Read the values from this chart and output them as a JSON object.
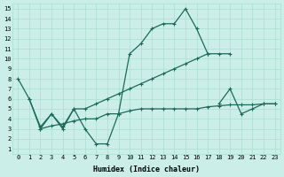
{
  "background_color": "#cceee8",
  "grid_color": "#aaddcc",
  "line_color": "#1a6b5a",
  "xlabel": "Humidex (Indice chaleur)",
  "xlim": [
    -0.5,
    23.5
  ],
  "ylim": [
    0.5,
    15.5
  ],
  "xticks": [
    0,
    1,
    2,
    3,
    4,
    5,
    6,
    7,
    8,
    9,
    10,
    11,
    12,
    13,
    14,
    15,
    16,
    17,
    18,
    19,
    20,
    21,
    22,
    23
  ],
  "yticks": [
    1,
    2,
    3,
    4,
    5,
    6,
    7,
    8,
    9,
    10,
    11,
    12,
    13,
    14,
    15
  ],
  "line1_x": [
    0,
    1,
    2,
    3,
    4,
    5,
    6,
    7,
    8,
    9,
    10,
    11,
    12,
    13,
    14,
    15,
    16,
    17
  ],
  "line1_y": [
    8,
    6,
    3,
    4.5,
    3,
    5,
    3,
    1.5,
    1.5,
    4.5,
    10.5,
    11.5,
    13,
    13.5,
    13.5,
    15,
    13,
    10.5
  ],
  "line2_x": [
    1,
    2,
    3,
    4,
    5,
    6,
    7,
    8,
    9,
    10,
    11,
    12,
    13,
    14,
    15,
    16,
    17,
    18,
    19
  ],
  "line2_y": [
    6,
    3.2,
    4.5,
    3.2,
    5,
    5,
    5.5,
    6,
    6.5,
    7,
    7.5,
    8,
    8.5,
    9,
    9.5,
    10,
    10.5,
    10.5,
    10.5
  ],
  "line3_x": [
    2,
    3,
    4,
    5,
    6,
    7,
    8,
    9,
    10,
    11,
    12,
    13,
    14,
    15,
    16,
    17,
    18,
    19,
    20,
    21,
    22,
    23
  ],
  "line3_y": [
    3,
    3.3,
    3.5,
    3.8,
    4,
    4,
    4.5,
    4.5,
    4.8,
    5,
    5,
    5,
    5,
    5,
    5,
    5.2,
    5.3,
    5.4,
    5.4,
    5.4,
    5.5,
    5.5
  ],
  "line4_x": [
    18,
    19,
    20,
    21,
    22,
    23
  ],
  "line4_y": [
    5.5,
    7,
    4.5,
    5,
    5.5,
    5.5
  ]
}
